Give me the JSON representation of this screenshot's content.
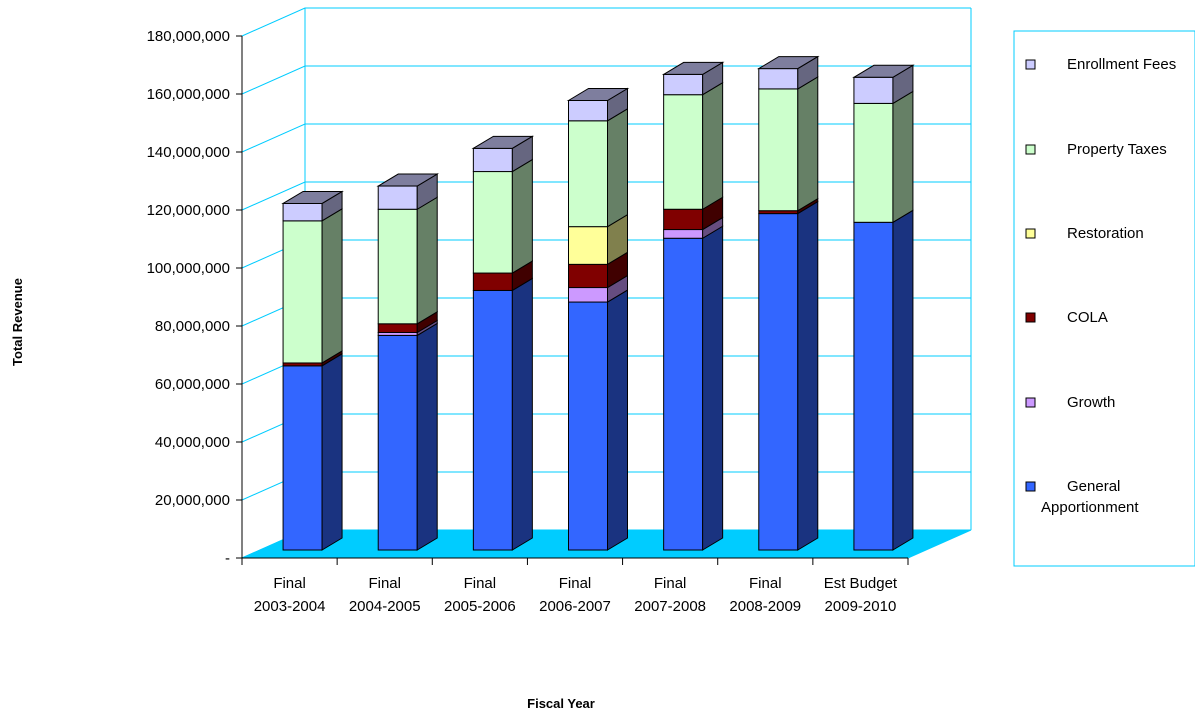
{
  "chart_data": {
    "type": "bar",
    "stacked": true,
    "three_d": true,
    "xlabel": "Fiscal Year",
    "ylabel": "Total Revenue",
    "ylim": [
      0,
      180000000
    ],
    "yticks": [
      0,
      20000000,
      40000000,
      60000000,
      80000000,
      100000000,
      120000000,
      140000000,
      160000000,
      180000000
    ],
    "ytick_labels": [
      "-",
      "20,000,000",
      "40,000,000",
      "60,000,000",
      "80,000,000",
      "100,000,000",
      "120,000,000",
      "140,000,000",
      "160,000,000",
      "180,000,000"
    ],
    "categories": [
      [
        "Final",
        "2003-2004"
      ],
      [
        "Final",
        "2004-2005"
      ],
      [
        "Final",
        "2005-2006"
      ],
      [
        "Final",
        "2006-2007"
      ],
      [
        "Final",
        "2007-2008"
      ],
      [
        "Final",
        "2008-2009"
      ],
      [
        "Est Budget",
        "2009-2010"
      ]
    ],
    "series": [
      {
        "name": "General Apportionment",
        "color": "#3366ff",
        "values": [
          63500000,
          74000000,
          89500000,
          85500000,
          107500000,
          116000000,
          113000000
        ]
      },
      {
        "name": "Growth",
        "color": "#cc99ff",
        "values": [
          0,
          1000000,
          0,
          5000000,
          3000000,
          0,
          0
        ]
      },
      {
        "name": "COLA",
        "color": "#800000",
        "values": [
          1000000,
          3000000,
          6000000,
          8000000,
          7000000,
          1000000,
          0
        ]
      },
      {
        "name": "Restoration",
        "color": "#ffff99",
        "values": [
          0,
          0,
          0,
          13000000,
          0,
          0,
          0
        ]
      },
      {
        "name": "Property Taxes",
        "color": "#ccffcc",
        "values": [
          49000000,
          39500000,
          35000000,
          36500000,
          39500000,
          42000000,
          41000000
        ]
      },
      {
        "name": "Enrollment Fees",
        "color": "#ccccff",
        "values": [
          6000000,
          8000000,
          8000000,
          7000000,
          7000000,
          7000000,
          9000000
        ]
      }
    ],
    "legend_position": "right",
    "legend_order": [
      "Enrollment Fees",
      "Property Taxes",
      "Restoration",
      "COLA",
      "Growth",
      "General Apportionment"
    ],
    "grid": true,
    "colors": {
      "wall_line": "#00ccff",
      "floor": "#00ccff"
    }
  }
}
